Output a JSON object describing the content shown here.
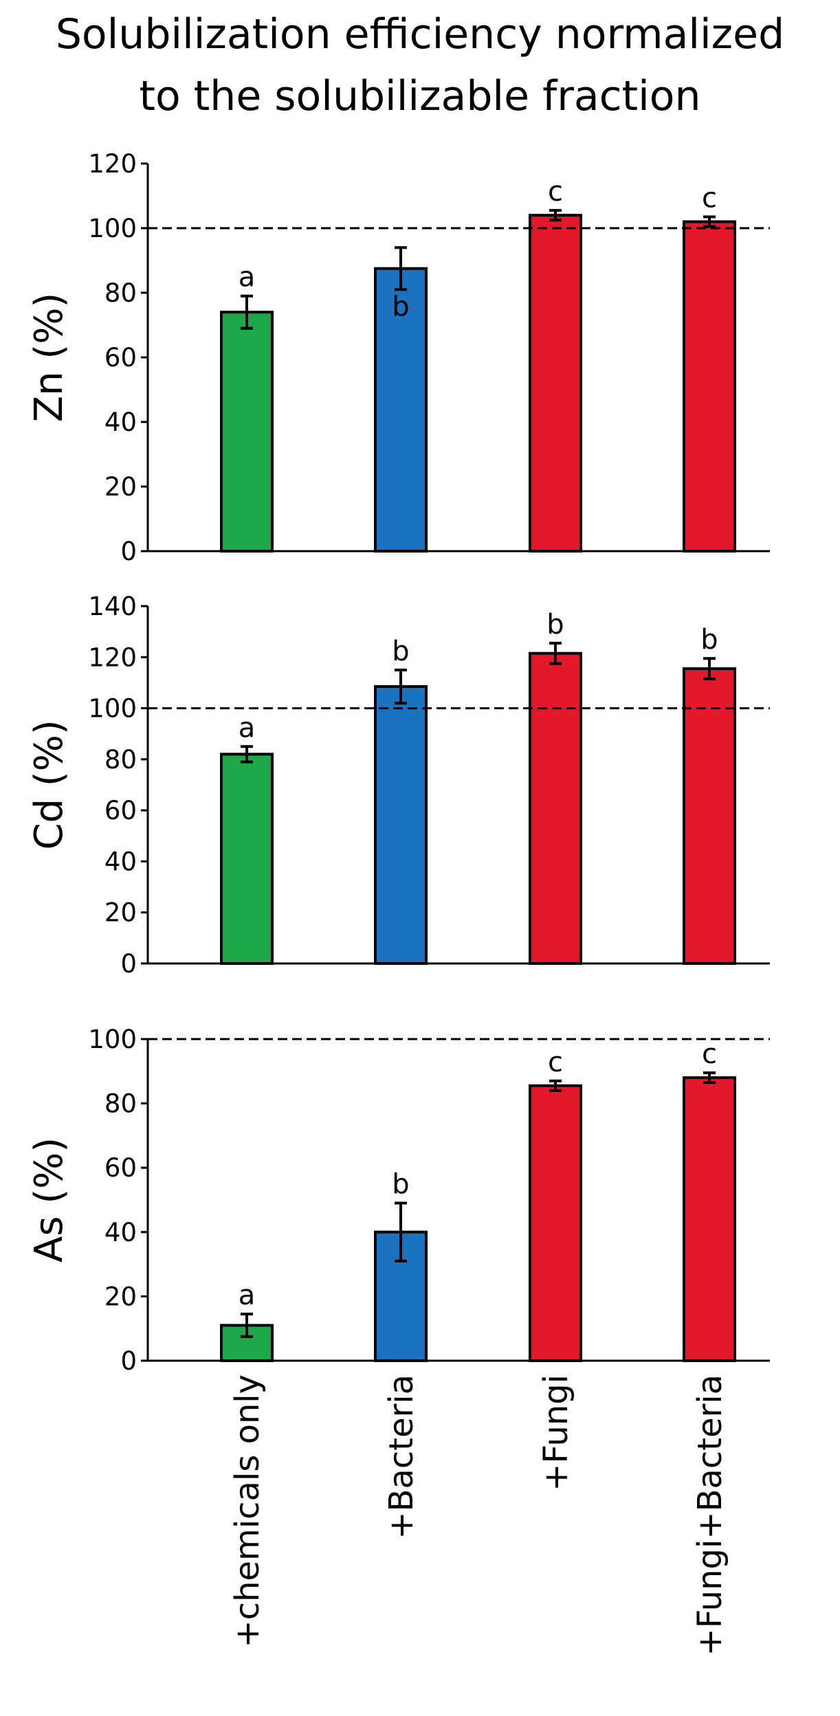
{
  "title_lines": [
    "Solubilization efficiency normalized",
    "to the solubilizable fraction"
  ],
  "chart_data": [
    {
      "type": "bar",
      "name": "zn-panel",
      "ylabel": "Zn (%)",
      "ylim": [
        0,
        120
      ],
      "yticks": [
        0,
        20,
        40,
        60,
        80,
        100,
        120
      ],
      "reference_line": 100,
      "categories": [
        "+chemicals only",
        "+Bacteria",
        "+Fungi",
        "+Fungi+Bacteria"
      ],
      "values": [
        74,
        87.5,
        104,
        102
      ],
      "errors": [
        5,
        6.5,
        1.5,
        1.5
      ],
      "significance": [
        "a",
        "b",
        "c",
        "c"
      ],
      "label_position": [
        "above",
        "inside",
        "above",
        "above"
      ]
    },
    {
      "type": "bar",
      "name": "cd-panel",
      "ylabel": "Cd (%)",
      "ylim": [
        0,
        140
      ],
      "yticks": [
        0,
        20,
        40,
        60,
        80,
        100,
        120,
        140
      ],
      "reference_line": 100,
      "categories": [
        "+chemicals only",
        "+Bacteria",
        "+Fungi",
        "+Fungi+Bacteria"
      ],
      "values": [
        82,
        108.5,
        121.5,
        115.5
      ],
      "errors": [
        3,
        6.5,
        4,
        4
      ],
      "significance": [
        "a",
        "b",
        "b",
        "b"
      ],
      "label_position": [
        "above",
        "above",
        "above",
        "above"
      ]
    },
    {
      "type": "bar",
      "name": "as-panel",
      "ylabel": "As (%)",
      "ylim": [
        0,
        100
      ],
      "yticks": [
        0,
        20,
        40,
        60,
        80,
        100
      ],
      "reference_line": 100,
      "categories": [
        "+chemicals only",
        "+Bacteria",
        "+Fungi",
        "+Fungi+Bacteria"
      ],
      "values": [
        11,
        40,
        85.5,
        88
      ],
      "errors": [
        3.5,
        9,
        1.5,
        1.5
      ],
      "significance": [
        "a",
        "b",
        "c",
        "c"
      ],
      "label_position": [
        "above",
        "above",
        "above",
        "above"
      ]
    }
  ],
  "x_tick_labels": [
    "+chemicals only",
    "+Bacteria",
    "+Fungi",
    "+Fungi+Bacteria"
  ],
  "bar_colors": [
    "#1fa84a",
    "#1a72c0",
    "#e3192b",
    "#e3192b"
  ]
}
